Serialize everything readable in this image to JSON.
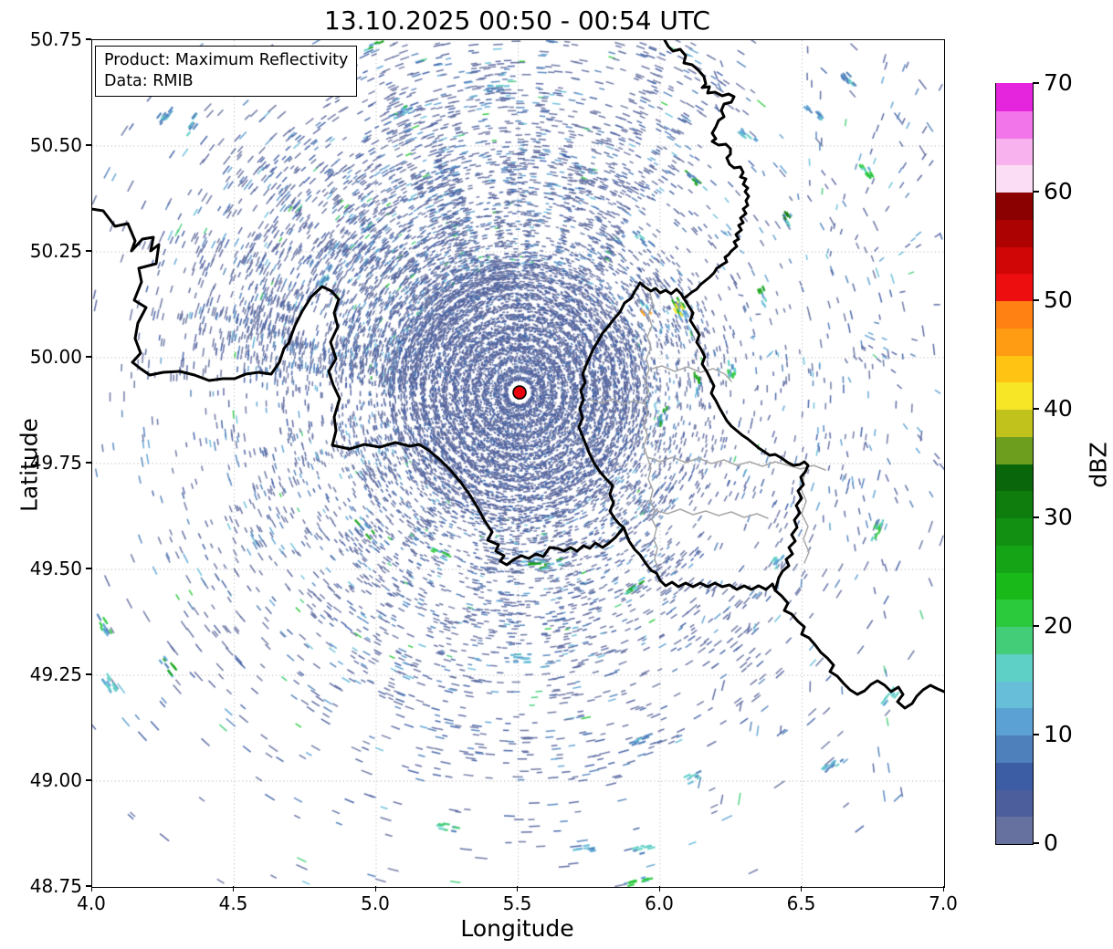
{
  "title": "13.10.2025 00:50 - 00:54 UTC",
  "info_box": {
    "product": "Product: Maximum Reflectivity",
    "data_source": "Data: RMIB"
  },
  "axes": {
    "xlabel": "Longitude",
    "ylabel": "Latitude",
    "x_ticks": [
      "4.0",
      "4.5",
      "5.0",
      "5.5",
      "6.0",
      "6.5",
      "7.0"
    ],
    "y_ticks": [
      "48.75",
      "49.00",
      "49.25",
      "49.50",
      "49.75",
      "50.00",
      "50.25",
      "50.50",
      "50.75"
    ],
    "xlim": [
      4.0,
      7.0
    ],
    "ylim": [
      48.75,
      50.75
    ],
    "grid": "dashed-lightgray"
  },
  "colorbar": {
    "label": "dBZ",
    "ticks": [
      "0",
      "10",
      "20",
      "30",
      "40",
      "50",
      "60",
      "70"
    ],
    "range": [
      0,
      70
    ],
    "step": 2.5,
    "colors_bottom_to_top": [
      "#66719f",
      "#4c5f9c",
      "#3c5ca4",
      "#4e80bb",
      "#5ba1d3",
      "#67bed9",
      "#5ed0c6",
      "#44cd78",
      "#2bc93c",
      "#19b919",
      "#15a415",
      "#129012",
      "#0e7d0e",
      "#0a660a",
      "#6e9e1e",
      "#c2c21d",
      "#f7e626",
      "#ffc413",
      "#ff9c13",
      "#ff8013",
      "#ed0f0f",
      "#d00505",
      "#ad0202",
      "#8b0000",
      "#fbddf5",
      "#f8b2ee",
      "#f276ea",
      "#e525dd"
    ]
  },
  "radar": {
    "site_lon": 5.505,
    "site_lat": 49.918,
    "marker_color": "#e8000d"
  },
  "chart_data": {
    "type": "heatmap",
    "title": "13.10.2025 00:50 - 00:54 UTC",
    "xlabel": "Longitude",
    "ylabel": "Latitude",
    "xlim": [
      4.0,
      7.0
    ],
    "ylim": [
      48.75,
      50.75
    ],
    "colorbar_label": "dBZ",
    "colorbar_range": [
      0,
      70
    ],
    "colorbar_ticks": [
      0,
      10,
      20,
      30,
      40,
      50,
      60,
      70
    ],
    "description": "Maximum reflectivity radar composite; dense low-level (0-10 dBZ) clutter speckle in concentric rings around the radar site, sparser radial streaks outward, scattered 10-45 dBZ cells mostly east and south",
    "radar_site": {
      "lon": 5.505,
      "lat": 49.918
    },
    "cells": [
      {
        "lon": 6.11,
        "lat": 50.42,
        "dbz": 25
      },
      {
        "lon": 6.45,
        "lat": 50.33,
        "dbz": 30
      },
      {
        "lon": 6.73,
        "lat": 50.44,
        "dbz": 20
      },
      {
        "lon": 6.31,
        "lat": 50.52,
        "dbz": 10
      },
      {
        "lon": 5.94,
        "lat": 50.28,
        "dbz": 8
      },
      {
        "lon": 6.07,
        "lat": 50.12,
        "dbz": 25
      },
      {
        "lon": 6.37,
        "lat": 50.14,
        "dbz": 25
      },
      {
        "lon": 5.94,
        "lat": 50.12,
        "dbz": 45
      },
      {
        "lon": 6.07,
        "lat": 50.11,
        "dbz": 40
      },
      {
        "lon": 6.13,
        "lat": 49.94,
        "dbz": 25
      },
      {
        "lon": 6.25,
        "lat": 49.98,
        "dbz": 22
      },
      {
        "lon": 6.01,
        "lat": 49.86,
        "dbz": 25
      },
      {
        "lon": 6.41,
        "lat": 49.52,
        "dbz": 15
      },
      {
        "lon": 5.91,
        "lat": 49.46,
        "dbz": 25
      },
      {
        "lon": 5.62,
        "lat": 49.51,
        "dbz": 28
      },
      {
        "lon": 5.55,
        "lat": 49.52,
        "dbz": 25
      },
      {
        "lon": 5.22,
        "lat": 49.54,
        "dbz": 22
      },
      {
        "lon": 4.96,
        "lat": 49.6,
        "dbz": 25
      },
      {
        "lon": 4.27,
        "lat": 49.27,
        "dbz": 25
      },
      {
        "lon": 4.04,
        "lat": 49.37,
        "dbz": 22
      },
      {
        "lon": 4.06,
        "lat": 49.23,
        "dbz": 15
      },
      {
        "lon": 6.76,
        "lat": 49.59,
        "dbz": 22
      },
      {
        "lon": 6.81,
        "lat": 49.2,
        "dbz": 15
      },
      {
        "lon": 6.61,
        "lat": 49.04,
        "dbz": 8
      },
      {
        "lon": 6.12,
        "lat": 49.01,
        "dbz": 15
      },
      {
        "lon": 5.93,
        "lat": 49.1,
        "dbz": 8
      },
      {
        "lon": 5.94,
        "lat": 48.84,
        "dbz": 15
      },
      {
        "lon": 5.93,
        "lat": 48.76,
        "dbz": 20
      },
      {
        "lon": 5.74,
        "lat": 48.84,
        "dbz": 13
      },
      {
        "lon": 5.25,
        "lat": 48.89,
        "dbz": 18
      },
      {
        "lon": 5.51,
        "lat": 49.29,
        "dbz": 13
      },
      {
        "lon": 5.09,
        "lat": 50.58,
        "dbz": 22
      },
      {
        "lon": 4.99,
        "lat": 50.74,
        "dbz": 25
      },
      {
        "lon": 5.43,
        "lat": 50.64,
        "dbz": 8
      },
      {
        "lon": 6.54,
        "lat": 50.58,
        "dbz": 10
      },
      {
        "lon": 6.66,
        "lat": 50.66,
        "dbz": 8
      },
      {
        "lon": 4.83,
        "lat": 50.19,
        "dbz": 8
      },
      {
        "lon": 4.35,
        "lat": 50.55,
        "dbz": 8
      },
      {
        "lon": 4.25,
        "lat": 50.57,
        "dbz": 8
      }
    ]
  }
}
